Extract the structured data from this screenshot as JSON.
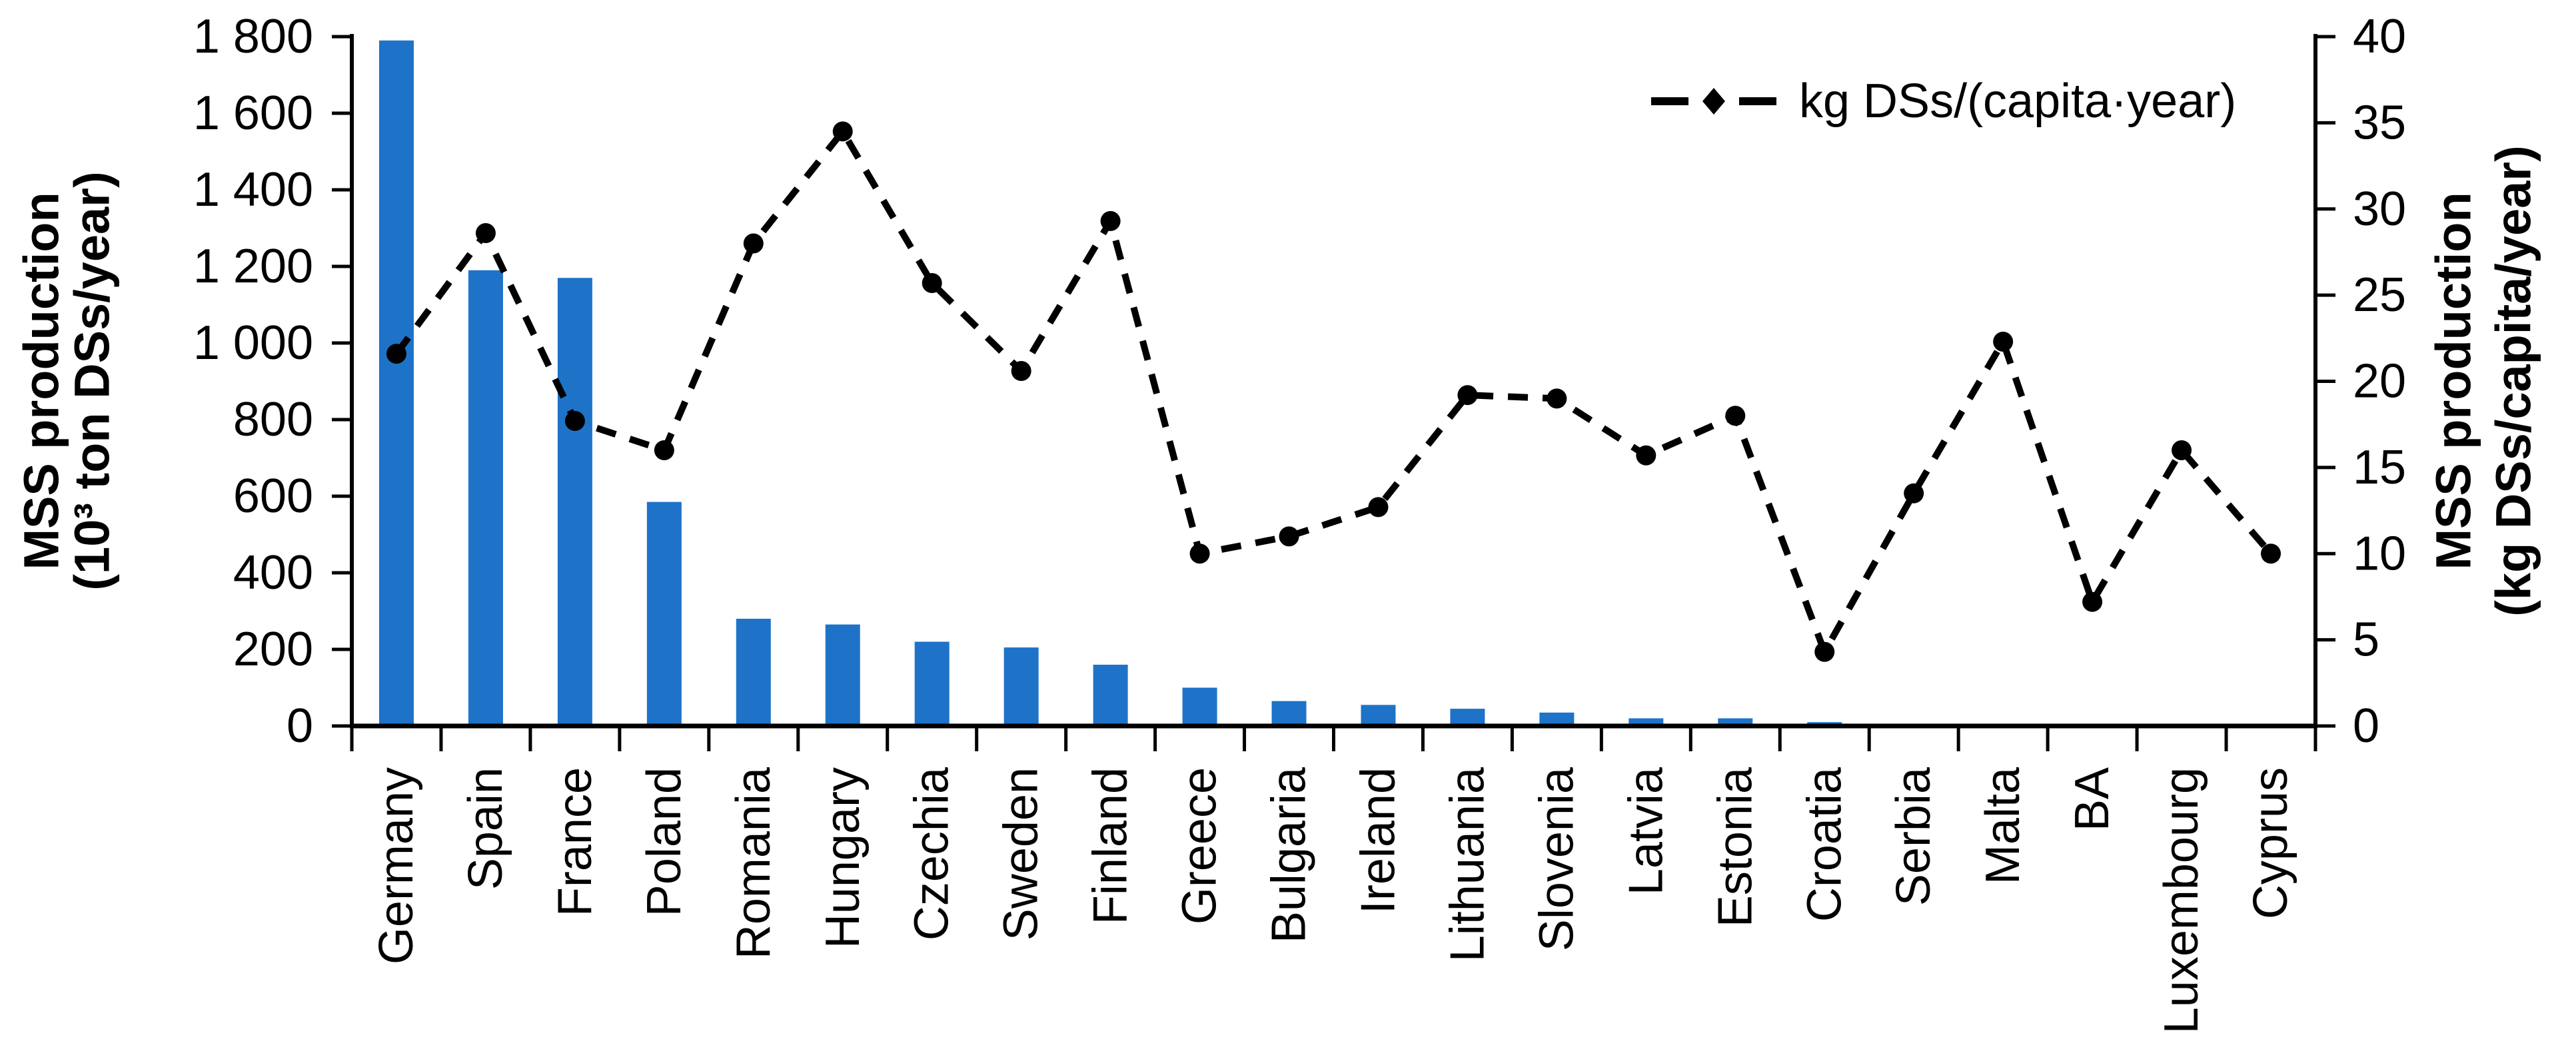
{
  "figure": {
    "legend_label": "kg DSs/(capita·year)"
  },
  "chart_data": {
    "type": "bar",
    "subtype": "combo bar + dashed line with markers (dual axis)",
    "title": "",
    "categories": [
      "Germany",
      "Spain",
      "France",
      "Poland",
      "Romania",
      "Hungary",
      "Czechia",
      "Sweden",
      "Finland",
      "Greece",
      "Bulgaria",
      "Ireland",
      "Lithuania",
      "Slovenia",
      "Latvia",
      "Estonia",
      "Croatia",
      "Serbia",
      "Malta",
      "BA",
      "Luxembourg",
      "Cyprus"
    ],
    "series": [
      {
        "name": "MSS production (10³ ton DSs/year)",
        "type": "bar",
        "axis": "left",
        "color": "#1E73C8",
        "values": [
          1790,
          1190,
          1170,
          585,
          280,
          265,
          220,
          205,
          160,
          100,
          65,
          55,
          45,
          35,
          20,
          20,
          10,
          0,
          0,
          0,
          0,
          0
        ]
      },
      {
        "name": "kg DSs/(capita·year)",
        "type": "line",
        "axis": "right",
        "color": "#000000",
        "line_style": "dashed",
        "marker": "filled-circle",
        "values": [
          21.6,
          28.6,
          17.7,
          16.0,
          28.0,
          34.5,
          25.7,
          20.6,
          29.3,
          10.0,
          11.0,
          12.7,
          19.2,
          19.0,
          15.7,
          18.0,
          4.3,
          13.5,
          22.3,
          7.2,
          16.0,
          10.0
        ]
      }
    ],
    "left_axis": {
      "title_line1": "MSS production",
      "title_line2": "(10³ ton DSs/year)",
      "min": 0,
      "max": 1800,
      "tick_step": 200,
      "tick_labels": [
        "0",
        "200",
        "400",
        "600",
        "800",
        "1 000",
        "1 200",
        "1 400",
        "1 600",
        "1 800"
      ]
    },
    "right_axis": {
      "title_line1": "MSS production",
      "title_line2": "(kg DSs/capita/year)",
      "min": 0,
      "max": 40,
      "tick_step": 5,
      "tick_labels": [
        "0",
        "5",
        "10",
        "15",
        "20",
        "25",
        "30",
        "35",
        "40"
      ]
    },
    "legend": {
      "label": "kg DSs/(capita·year)",
      "position": "top-right inside plot",
      "marker": "dash-diamond-dash"
    },
    "grid": false,
    "bar_color": "#1E73C8",
    "line_color": "#000000",
    "background_color": "#ffffff"
  }
}
